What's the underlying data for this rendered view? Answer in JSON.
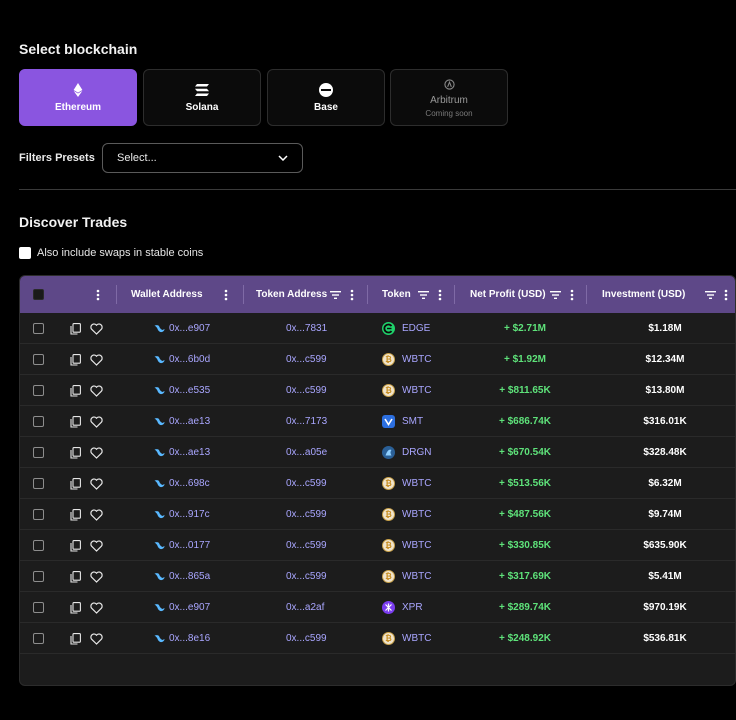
{
  "select_blockchain": {
    "title": "Select blockchain",
    "chains": [
      {
        "label": "Ethereum",
        "icon": "ethereum-icon",
        "active": true
      },
      {
        "label": "Solana",
        "icon": "solana-icon",
        "active": false
      },
      {
        "label": "Base",
        "icon": "base-icon",
        "active": false
      },
      {
        "label": "Arbitrum",
        "sub": "Coming soon",
        "icon": "arbitrum-icon",
        "active": false
      }
    ]
  },
  "filters": {
    "label": "Filters Presets",
    "select_value": "Select..."
  },
  "discover": {
    "title": "Discover Trades",
    "stable_checkbox_label": "Also include swaps in stable coins"
  },
  "table": {
    "headers": {
      "wallet": "Wallet Address",
      "token_address": "Token Address",
      "token": "Token",
      "net_profit": "Net Profit (USD)",
      "investment": "Investment (USD)"
    },
    "rows": [
      {
        "wallet": "0x...e907",
        "token_address": "0x...7831",
        "token": "EDGE",
        "icon": "edge-icon",
        "profit": "+ $2.71M",
        "investment": "$1.18M"
      },
      {
        "wallet": "0x...6b0d",
        "token_address": "0x...c599",
        "token": "WBTC",
        "icon": "btc-icon",
        "profit": "+ $1.92M",
        "investment": "$12.34M"
      },
      {
        "wallet": "0x...e535",
        "token_address": "0x...c599",
        "token": "WBTC",
        "icon": "btc-icon",
        "profit": "+ $811.65K",
        "investment": "$13.80M"
      },
      {
        "wallet": "0x...ae13",
        "token_address": "0x...7173",
        "token": "SMT",
        "icon": "smt-icon",
        "profit": "+ $686.74K",
        "investment": "$316.01K"
      },
      {
        "wallet": "0x...ae13",
        "token_address": "0x...a05e",
        "token": "DRGN",
        "icon": "drgn-icon",
        "profit": "+ $670.54K",
        "investment": "$328.48K"
      },
      {
        "wallet": "0x...698c",
        "token_address": "0x...c599",
        "token": "WBTC",
        "icon": "btc-icon",
        "profit": "+ $513.56K",
        "investment": "$6.32M"
      },
      {
        "wallet": "0x...917c",
        "token_address": "0x...c599",
        "token": "WBTC",
        "icon": "btc-icon",
        "profit": "+ $487.56K",
        "investment": "$9.74M"
      },
      {
        "wallet": "0x...0177",
        "token_address": "0x...c599",
        "token": "WBTC",
        "icon": "btc-icon",
        "profit": "+ $330.85K",
        "investment": "$635.90K"
      },
      {
        "wallet": "0x...865a",
        "token_address": "0x...c599",
        "token": "WBTC",
        "icon": "btc-icon",
        "profit": "+ $317.69K",
        "investment": "$5.41M"
      },
      {
        "wallet": "0x...e907",
        "token_address": "0x...a2af",
        "token": "XPR",
        "icon": "xpr-icon",
        "profit": "+ $289.74K",
        "investment": "$970.19K"
      },
      {
        "wallet": "0x...8e16",
        "token_address": "0x...c599",
        "token": "WBTC",
        "icon": "btc-icon",
        "profit": "+ $248.92K",
        "investment": "$536.81K"
      }
    ]
  },
  "colors": {
    "accent": "#8a55e0",
    "header_bg": "#5e4888",
    "profit_green": "#5ee27a",
    "link_purple": "#a9a6ff"
  }
}
